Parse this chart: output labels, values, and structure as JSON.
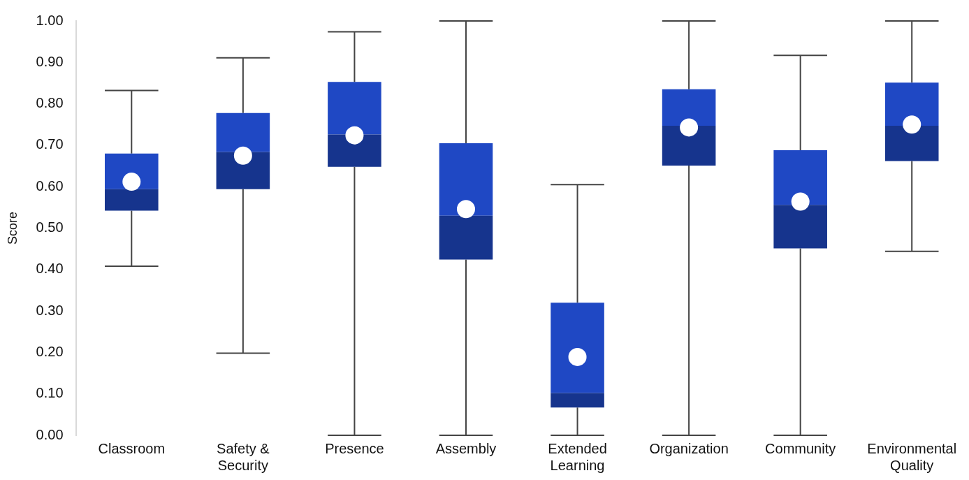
{
  "chart_data": {
    "type": "box",
    "ylabel": "Score",
    "categories": [
      "Classroom",
      "Safety & Security",
      "Presence",
      "Assembly",
      "Extended Learning",
      "Organization",
      "Community",
      "Environmental Quality"
    ],
    "grid": false,
    "series": [
      {
        "color": "#16348d",
        "boxes": [
          {
            "low": 0.408,
            "q1": 0.542,
            "median": 0.594,
            "q3": 0.68,
            "high": 0.832,
            "mean": 0.612
          },
          {
            "low": 0.198,
            "q1": 0.594,
            "median": 0.684,
            "q3": 0.778,
            "high": 0.911,
            "mean": 0.675
          },
          {
            "low": 0,
            "q1": 0.648,
            "median": 0.726,
            "q3": 0.853,
            "high": 0.974,
            "mean": 0.724
          },
          {
            "low": 0,
            "q1": 0.424,
            "median": 0.53,
            "q3": 0.705,
            "high": 1.0,
            "mean": 0.546
          },
          {
            "low": 0,
            "q1": 0.067,
            "median": 0.102,
            "q3": 0.32,
            "high": 0.605,
            "mean": 0.189
          },
          {
            "low": 0,
            "q1": 0.651,
            "median": 0.747,
            "q3": 0.835,
            "high": 1.0,
            "mean": 0.743
          },
          {
            "low": 0,
            "q1": 0.451,
            "median": 0.556,
            "q3": 0.688,
            "high": 0.917,
            "mean": 0.564
          },
          {
            "low": 0.444,
            "q1": 0.662,
            "median": 0.747,
            "q3": 0.851,
            "high": 1.0,
            "mean": 0.75
          }
        ]
      }
    ],
    "ylim": [
      0,
      1
    ],
    "yticks": [
      {
        "value": 0,
        "label": "0.00"
      },
      {
        "value": 0.1,
        "label": "0.10"
      },
      {
        "value": 0.2,
        "label": "0.20"
      },
      {
        "value": 0.3,
        "label": "0.30"
      },
      {
        "value": 0.4,
        "label": "0.40"
      },
      {
        "value": 0.5,
        "label": "0.50"
      },
      {
        "value": 0.6,
        "label": "0.60"
      },
      {
        "value": 0.7,
        "label": "0.70"
      },
      {
        "value": 0.8,
        "label": "0.80"
      },
      {
        "value": 0.9,
        "label": "0.90"
      },
      {
        "value": 1,
        "label": "1.00"
      }
    ]
  }
}
